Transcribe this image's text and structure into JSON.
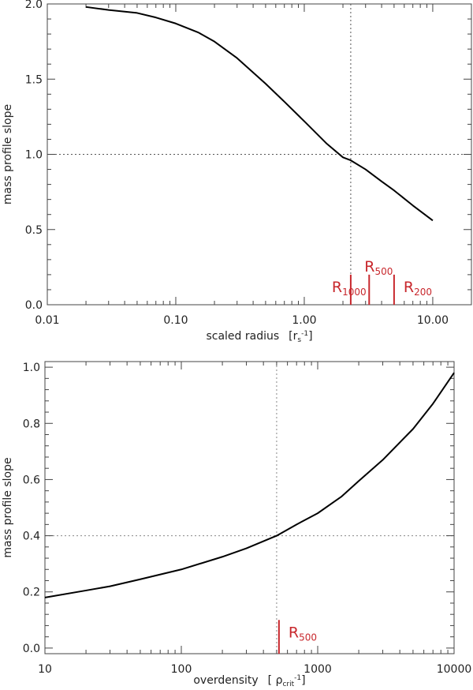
{
  "chart_data": [
    {
      "type": "line",
      "xscale": "log",
      "xlim": [
        0.01,
        20
      ],
      "ylim": [
        0.0,
        2.0
      ],
      "xlabel_main": "scaled radius",
      "xlabel_units": "[r",
      "xlabel_units_sub": "s",
      "xlabel_units_sup": "-1",
      "xlabel_units_close": "]",
      "ylabel": "mass profile slope",
      "x_ticks": [
        {
          "value": 0.01,
          "label": "0.01"
        },
        {
          "value": 0.1,
          "label": "0.10"
        },
        {
          "value": 1,
          "label": "1.00"
        },
        {
          "value": 10,
          "label": "10.00"
        }
      ],
      "y_ticks": [
        {
          "value": 0.0,
          "label": "0.0"
        },
        {
          "value": 0.5,
          "label": "0.5"
        },
        {
          "value": 1.0,
          "label": "1.0"
        },
        {
          "value": 1.5,
          "label": "1.5"
        },
        {
          "value": 2.0,
          "label": "2.0"
        }
      ],
      "series": [
        {
          "x": [
            0.02,
            0.03,
            0.05,
            0.07,
            0.1,
            0.15,
            0.2,
            0.3,
            0.5,
            0.7,
            1.0,
            1.5,
            2.0,
            2.3,
            3.0,
            4.0,
            5.0,
            7.0,
            10.0
          ],
          "y": [
            1.98,
            1.96,
            1.94,
            1.91,
            1.87,
            1.81,
            1.75,
            1.64,
            1.47,
            1.35,
            1.22,
            1.07,
            0.98,
            0.96,
            0.9,
            0.82,
            0.76,
            0.66,
            0.56
          ]
        }
      ],
      "ref_hline": 1.0,
      "ref_vline": 2.3,
      "markers": [
        {
          "x": 2.3,
          "height": 0.2,
          "label": "R",
          "sub": "1000",
          "label_pos": "left"
        },
        {
          "x": 3.2,
          "height": 0.2,
          "label": "R",
          "sub": "500",
          "label_pos": "above"
        },
        {
          "x": 5.0,
          "height": 0.2,
          "label": "R",
          "sub": "200",
          "label_pos": "right"
        }
      ],
      "colors": {
        "line": "#000000",
        "marker": "#c8282d",
        "reference": "#555555"
      }
    },
    {
      "type": "line",
      "xscale": "log",
      "xlim": [
        10,
        10000
      ],
      "ylim": [
        -0.02,
        1.02
      ],
      "xlabel_main": "overdensity",
      "xlabel_units": "[ ρ",
      "xlabel_units_sub": "crit",
      "xlabel_units_sup": "-1",
      "xlabel_units_close": "]",
      "ylabel": "mass profile slope",
      "x_ticks": [
        {
          "value": 10,
          "label": "10"
        },
        {
          "value": 100,
          "label": "100"
        },
        {
          "value": 1000,
          "label": "1000"
        },
        {
          "value": 10000,
          "label": "10000"
        }
      ],
      "y_ticks": [
        {
          "value": 0.0,
          "label": "0.0"
        },
        {
          "value": 0.2,
          "label": "0.2"
        },
        {
          "value": 0.4,
          "label": "0.4"
        },
        {
          "value": 0.6,
          "label": "0.6"
        },
        {
          "value": 0.8,
          "label": "0.8"
        },
        {
          "value": 1.0,
          "label": "1.0"
        }
      ],
      "series": [
        {
          "x": [
            10,
            20,
            30,
            50,
            100,
            200,
            300,
            500,
            700,
            1000,
            1500,
            2000,
            3000,
            5000,
            7000,
            10000
          ],
          "y": [
            0.18,
            0.205,
            0.22,
            0.245,
            0.28,
            0.325,
            0.355,
            0.4,
            0.44,
            0.48,
            0.54,
            0.595,
            0.67,
            0.78,
            0.87,
            0.98
          ]
        }
      ],
      "ref_hline": 0.4,
      "ref_vline": 500,
      "markers": [
        {
          "x": 520,
          "height": 0.1,
          "label": "R",
          "sub": "500",
          "label_pos": "right"
        }
      ],
      "colors": {
        "line": "#000000",
        "marker": "#c8282d",
        "reference": "#888888"
      }
    }
  ]
}
